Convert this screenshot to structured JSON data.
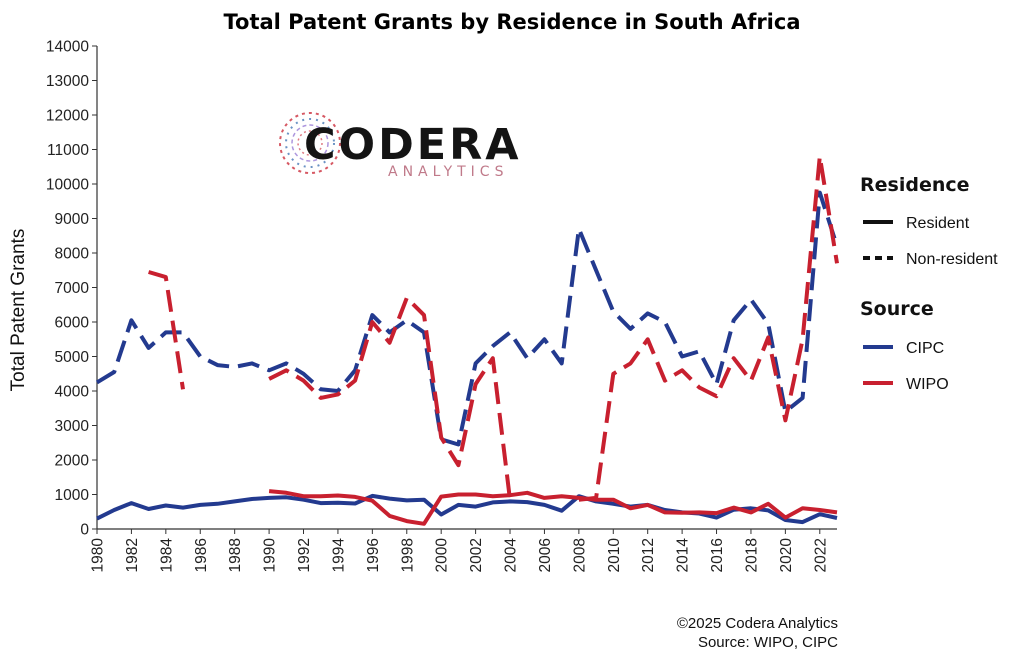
{
  "colors": {
    "cipc": "#233a8f",
    "wipo": "#c8202f",
    "axis": "#333333"
  },
  "logo": {
    "name": "CODERA",
    "sub": "ANALYTICS"
  },
  "footer": {
    "copyright": "©2025 Codera Analytics",
    "source": "Source: WIPO, CIPC"
  },
  "chart_data": {
    "type": "line",
    "title": "Total Patent Grants by Residence in South Africa",
    "xlabel": "",
    "ylabel": "Total Patent Grants",
    "xlim": [
      1980,
      2023
    ],
    "ylim": [
      0,
      14000
    ],
    "yticks": [
      0,
      1000,
      2000,
      3000,
      4000,
      5000,
      6000,
      7000,
      8000,
      9000,
      10000,
      11000,
      12000,
      13000,
      14000
    ],
    "xticks": [
      1980,
      1982,
      1984,
      1986,
      1988,
      1990,
      1992,
      1994,
      1996,
      1998,
      2000,
      2002,
      2004,
      2006,
      2008,
      2010,
      2012,
      2014,
      2016,
      2018,
      2020,
      2022
    ],
    "grid": false,
    "legend_position": "right",
    "legend": {
      "residence_title": "Residence",
      "resident_label": "Resident",
      "nonresident_label": "Non-resident",
      "source_title": "Source",
      "cipc_label": "CIPC",
      "wipo_label": "WIPO"
    },
    "series": [
      {
        "key": "cipc_nonresident",
        "source": "CIPC",
        "residence": "Non-resident",
        "dashed": true,
        "x": [
          1980,
          1981,
          1982,
          1983,
          1984,
          1985,
          1986,
          1987,
          1988,
          1989,
          1990,
          1991,
          1992,
          1993,
          1994,
          1995,
          1996,
          1997,
          1998,
          1999,
          2000,
          2001,
          2002,
          2003,
          2004,
          2005,
          2006,
          2007,
          2008,
          2009,
          2010,
          2011,
          2012,
          2013,
          2014,
          2015,
          2016,
          2017,
          2018,
          2019,
          2020,
          2021,
          2022,
          2023
        ],
        "y": [
          4250,
          4550,
          6050,
          5250,
          5700,
          5700,
          5000,
          4750,
          4700,
          4800,
          4600,
          4800,
          4500,
          4050,
          4000,
          4600,
          6200,
          5700,
          6050,
          5700,
          2600,
          2450,
          4800,
          5300,
          5700,
          4950,
          5500,
          4800,
          8700,
          7500,
          6300,
          5800,
          6250,
          6000,
          5000,
          5150,
          4200,
          6050,
          6650,
          5950,
          3400,
          3800,
          9750,
          8200
        ]
      },
      {
        "key": "wipo_nonresident",
        "source": "WIPO",
        "residence": "Non-resident",
        "dashed": true,
        "segments": [
          {
            "x": [
              1983,
              1984,
              1985
            ],
            "y": [
              7450,
              7300,
              4050
            ]
          },
          {
            "x": [
              1990,
              1991,
              1992,
              1993,
              1994,
              1995,
              1996,
              1997,
              1998,
              1999,
              2000,
              2001,
              2002,
              2003,
              2004
            ],
            "y": [
              4350,
              4600,
              4300,
              3800,
              3900,
              4300,
              6000,
              5400,
              6700,
              6200,
              2650,
              1850,
              4200,
              4950,
              850
            ]
          },
          {
            "x": [
              2008,
              2009,
              2010,
              2011,
              2012,
              2013,
              2014,
              2015,
              2016,
              2017,
              2018,
              2019,
              2020,
              2021,
              2022,
              2023
            ],
            "y": [
              850,
              900,
              4500,
              4800,
              5500,
              4300,
              4600,
              4100,
              3850,
              4950,
              4300,
              5550,
              3150,
              5500,
              10800,
              7700
            ]
          }
        ]
      },
      {
        "key": "cipc_resident",
        "source": "CIPC",
        "residence": "Resident",
        "dashed": false,
        "x": [
          1980,
          1981,
          1982,
          1983,
          1984,
          1985,
          1986,
          1987,
          1988,
          1989,
          1990,
          1991,
          1992,
          1993,
          1994,
          1995,
          1996,
          1997,
          1998,
          1999,
          2000,
          2001,
          2002,
          2003,
          2004,
          2005,
          2006,
          2007,
          2008,
          2009,
          2010,
          2011,
          2012,
          2013,
          2014,
          2015,
          2016,
          2017,
          2018,
          2019,
          2020,
          2021,
          2022,
          2023
        ],
        "y": [
          300,
          550,
          750,
          580,
          680,
          620,
          700,
          730,
          800,
          870,
          900,
          920,
          850,
          750,
          760,
          740,
          960,
          880,
          830,
          850,
          420,
          700,
          650,
          770,
          800,
          780,
          700,
          530,
          950,
          800,
          730,
          650,
          700,
          550,
          480,
          450,
          330,
          560,
          600,
          540,
          260,
          200,
          430,
          320
        ]
      },
      {
        "key": "wipo_resident",
        "source": "WIPO",
        "residence": "Resident",
        "dashed": false,
        "x": [
          1990,
          1991,
          1992,
          1993,
          1994,
          1995,
          1996,
          1997,
          1998,
          1999,
          2000,
          2001,
          2002,
          2003,
          2004,
          2005,
          2006,
          2007,
          2008,
          2009,
          2010,
          2011,
          2012,
          2013,
          2014,
          2015,
          2016,
          2017,
          2018,
          2019,
          2020,
          2021,
          2022,
          2023
        ],
        "y": [
          1100,
          1050,
          950,
          950,
          970,
          930,
          820,
          380,
          230,
          150,
          940,
          1000,
          1000,
          950,
          980,
          1050,
          900,
          950,
          900,
          850,
          850,
          600,
          700,
          480,
          470,
          480,
          460,
          620,
          480,
          730,
          330,
          600,
          550,
          480
        ]
      }
    ]
  }
}
